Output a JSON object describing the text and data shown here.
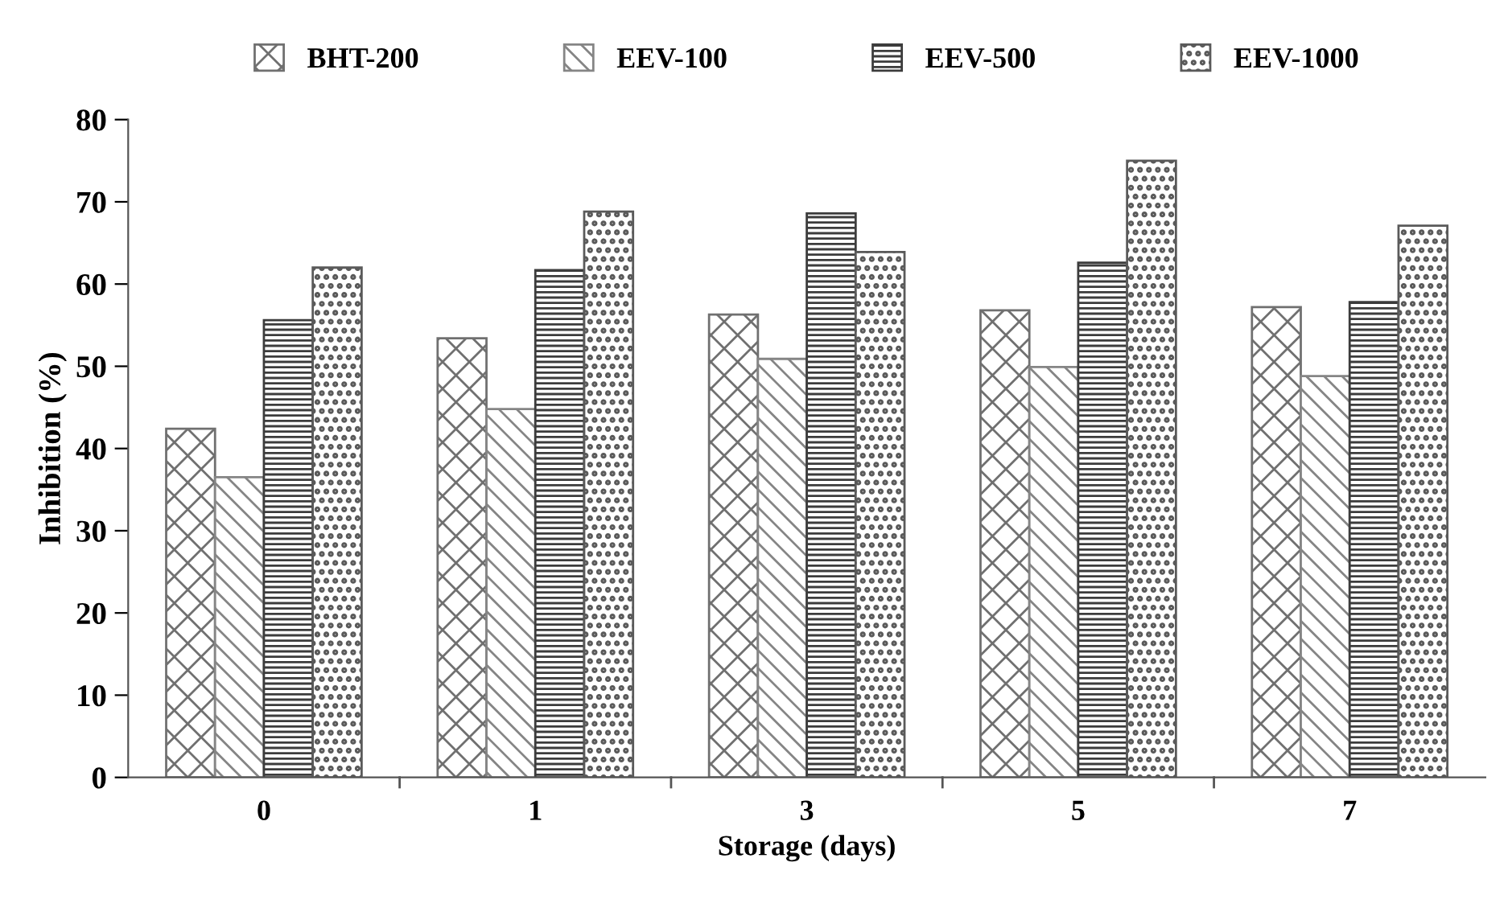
{
  "chart_data": {
    "type": "bar",
    "xlabel": "Storage (days)",
    "ylabel": "Inhibition (%)",
    "categories": [
      "0",
      "1",
      "3",
      "5",
      "7"
    ],
    "series": [
      {
        "name": "BHT-200",
        "color": "#707070",
        "values": [
          42.4,
          53.4,
          56.3,
          56.8,
          57.2
        ]
      },
      {
        "name": "EEV-100",
        "color": "#858585",
        "values": [
          36.5,
          44.8,
          50.9,
          49.9,
          48.8
        ]
      },
      {
        "name": "EEV-500",
        "color": "#3c3c3c",
        "values": [
          55.6,
          61.7,
          68.6,
          62.6,
          57.8
        ]
      },
      {
        "name": "EEV-1000",
        "color": "#5a5a5a",
        "values": [
          62.0,
          68.8,
          63.9,
          75.0,
          67.1
        ]
      }
    ],
    "ylim": [
      0,
      80
    ],
    "yticks": [
      0,
      10,
      20,
      30,
      40,
      50,
      60,
      70,
      80
    ],
    "grid": false,
    "legend": "top"
  }
}
